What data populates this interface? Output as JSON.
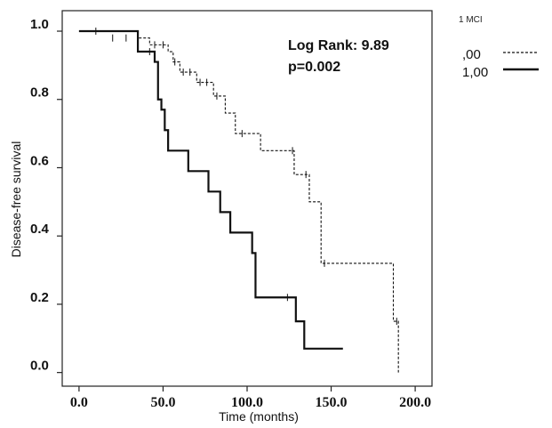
{
  "chart_data": {
    "type": "line",
    "title": "",
    "xlabel": "Time (months)",
    "ylabel": "Disease-free survival",
    "xlim": [
      -10,
      210
    ],
    "ylim": [
      -0.04,
      1.06
    ],
    "x_ticks": [
      0,
      50,
      100,
      150,
      200
    ],
    "x_tick_labels": [
      "0.0",
      "50.0",
      "100.0",
      "150.0",
      "200.0"
    ],
    "y_ticks": [
      0.0,
      0.2,
      0.4,
      0.6,
      0.8,
      1.0
    ],
    "y_tick_labels": [
      "0.0",
      "0.2",
      "0.4",
      "0.6",
      "0.8",
      "1.0"
    ],
    "grid": false,
    "legend_placement": "outside-top-right",
    "legend_title": "1 MCI",
    "annotations": [
      "Log Rank: 9.89",
      "p=0.002"
    ],
    "series": [
      {
        "name": ",00",
        "style": "dashed",
        "steps": [
          [
            0,
            1.0
          ],
          [
            35,
            0.98
          ],
          [
            42,
            0.96
          ],
          [
            53,
            0.94
          ],
          [
            56,
            0.91
          ],
          [
            60,
            0.88
          ],
          [
            70,
            0.85
          ],
          [
            80,
            0.81
          ],
          [
            87,
            0.76
          ],
          [
            93,
            0.7
          ],
          [
            108,
            0.65
          ],
          [
            128,
            0.58
          ],
          [
            137,
            0.5
          ],
          [
            144,
            0.32
          ],
          [
            175,
            0.32
          ],
          [
            187,
            0.15
          ],
          [
            190,
            0.0
          ]
        ],
        "end": 190,
        "censored": [
          [
            10,
            1.0
          ],
          [
            20,
            0.98
          ],
          [
            28,
            0.98
          ],
          [
            45,
            0.96
          ],
          [
            50,
            0.96
          ],
          [
            57,
            0.91
          ],
          [
            62,
            0.88
          ],
          [
            66,
            0.88
          ],
          [
            72,
            0.85
          ],
          [
            76,
            0.85
          ],
          [
            82,
            0.81
          ],
          [
            97,
            0.7
          ],
          [
            127,
            0.65
          ],
          [
            135,
            0.58
          ],
          [
            146,
            0.32
          ],
          [
            189,
            0.15
          ]
        ]
      },
      {
        "name": "1,00",
        "style": "solid",
        "steps": [
          [
            0,
            1.0
          ],
          [
            35,
            0.94
          ],
          [
            45,
            0.91
          ],
          [
            47,
            0.8
          ],
          [
            49,
            0.77
          ],
          [
            51,
            0.71
          ],
          [
            53,
            0.65
          ],
          [
            65,
            0.59
          ],
          [
            77,
            0.53
          ],
          [
            84,
            0.47
          ],
          [
            90,
            0.41
          ],
          [
            103,
            0.35
          ],
          [
            105,
            0.22
          ],
          [
            129,
            0.15
          ],
          [
            134,
            0.07
          ]
        ],
        "end": 157,
        "censored": [
          [
            42,
            0.94
          ],
          [
            124,
            0.22
          ]
        ]
      }
    ]
  }
}
